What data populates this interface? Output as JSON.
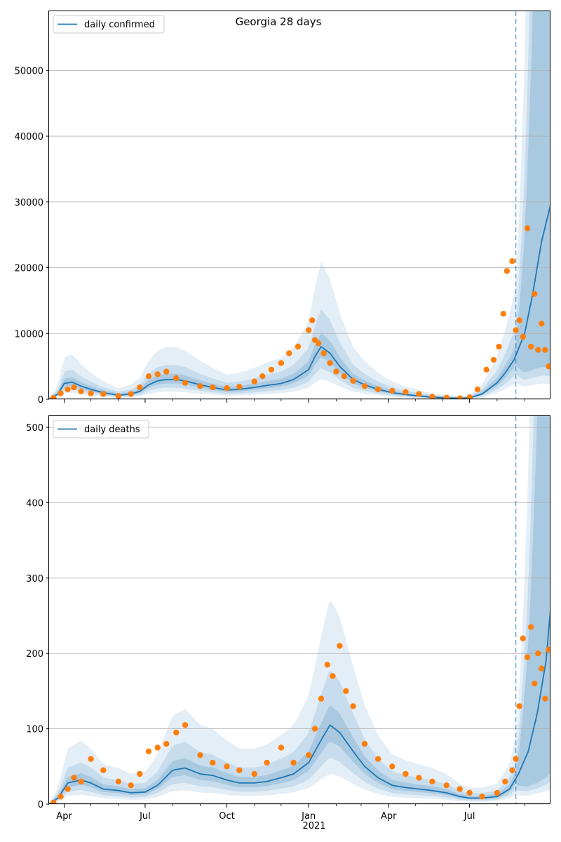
{
  "title": "Georgia 28 days",
  "colors": {
    "line": "#1f77b4",
    "points": "#ff7f0e",
    "band": "#1f77b4",
    "grid": "#b0b0b0",
    "vline": "#1f77b4"
  },
  "chart_data": [
    {
      "type": "line",
      "name": "daily confirmed",
      "legend": "upper-left",
      "grid": "horizontal",
      "xlim": [
        "2020-03-15",
        "2021-09-30"
      ],
      "ylim": [
        0,
        59000
      ],
      "yticks": [
        0,
        10000,
        20000,
        30000,
        40000,
        50000
      ],
      "ytick_labels": [
        "0",
        "10000",
        "20000",
        "30000",
        "40000",
        "50000"
      ],
      "forecast_start": "2021-08-22",
      "series": [
        {
          "name": "daily confirmed",
          "x": [
            "2020-03-15",
            "2020-03-25",
            "2020-04-01",
            "2020-04-10",
            "2020-04-20",
            "2020-05-01",
            "2020-05-15",
            "2020-06-01",
            "2020-06-15",
            "2020-06-25",
            "2020-07-05",
            "2020-07-15",
            "2020-07-25",
            "2020-08-05",
            "2020-08-15",
            "2020-09-01",
            "2020-09-15",
            "2020-10-01",
            "2020-10-15",
            "2020-11-01",
            "2020-11-15",
            "2020-12-01",
            "2020-12-15",
            "2021-01-01",
            "2021-01-08",
            "2021-01-15",
            "2021-01-25",
            "2021-02-05",
            "2021-02-20",
            "2021-03-05",
            "2021-03-20",
            "2021-04-05",
            "2021-04-20",
            "2021-05-05",
            "2021-05-20",
            "2021-06-05",
            "2021-06-20",
            "2021-07-01",
            "2021-07-15",
            "2021-08-01",
            "2021-08-10",
            "2021-08-20",
            "2021-09-01",
            "2021-09-10",
            "2021-09-20",
            "2021-09-30"
          ],
          "y": [
            0,
            800,
            2400,
            2600,
            2000,
            1500,
            1000,
            600,
            800,
            1200,
            2200,
            2800,
            3000,
            3000,
            2800,
            2200,
            1800,
            1400,
            1500,
            1800,
            2100,
            2400,
            3000,
            4500,
            6500,
            8000,
            7000,
            5000,
            3000,
            2200,
            1500,
            1000,
            700,
            500,
            300,
            200,
            150,
            200,
            800,
            2500,
            4000,
            6000,
            10000,
            16000,
            24000,
            29500
          ]
        }
      ],
      "observed": {
        "name": "observed points",
        "x": [
          "2020-03-20",
          "2020-03-28",
          "2020-04-05",
          "2020-04-12",
          "2020-04-20",
          "2020-05-01",
          "2020-05-15",
          "2020-06-01",
          "2020-06-15",
          "2020-06-25",
          "2020-07-05",
          "2020-07-15",
          "2020-07-25",
          "2020-08-05",
          "2020-08-15",
          "2020-09-01",
          "2020-09-15",
          "2020-10-01",
          "2020-10-15",
          "2020-11-01",
          "2020-11-10",
          "2020-11-20",
          "2020-12-01",
          "2020-12-10",
          "2020-12-20",
          "2021-01-01",
          "2021-01-05",
          "2021-01-08",
          "2021-01-12",
          "2021-01-18",
          "2021-01-25",
          "2021-02-01",
          "2021-02-10",
          "2021-02-20",
          "2021-03-05",
          "2021-03-20",
          "2021-04-05",
          "2021-04-20",
          "2021-05-05",
          "2021-05-20",
          "2021-06-05",
          "2021-06-20",
          "2021-07-01",
          "2021-07-10",
          "2021-07-20",
          "2021-07-28",
          "2021-08-03",
          "2021-08-08",
          "2021-08-12",
          "2021-08-18",
          "2021-08-22",
          "2021-08-26",
          "2021-08-30",
          "2021-09-04",
          "2021-09-08",
          "2021-09-12",
          "2021-09-16",
          "2021-09-20",
          "2021-09-24",
          "2021-09-28"
        ],
        "y": [
          200,
          900,
          1500,
          1800,
          1200,
          900,
          800,
          500,
          800,
          1800,
          3500,
          3800,
          4200,
          3200,
          2500,
          2000,
          1800,
          1700,
          1900,
          2700,
          3500,
          4500,
          5500,
          7000,
          8000,
          10500,
          12000,
          9000,
          8500,
          7000,
          5500,
          4200,
          3500,
          2800,
          2000,
          1500,
          1300,
          1100,
          800,
          400,
          250,
          150,
          300,
          1500,
          4500,
          6000,
          8000,
          13000,
          19500,
          21000,
          10500,
          12000,
          9500,
          26000,
          8000,
          16000,
          7500,
          11500,
          7500,
          5000
        ]
      }
    },
    {
      "type": "line",
      "name": "daily deaths",
      "legend": "upper-left",
      "grid": "horizontal",
      "xlim": [
        "2020-03-15",
        "2021-09-30"
      ],
      "ylim": [
        0,
        515
      ],
      "yticks": [
        0,
        100,
        200,
        300,
        400,
        500
      ],
      "ytick_labels": [
        "0",
        "100",
        "200",
        "300",
        "400",
        "500"
      ],
      "xtick_labels": [
        "Apr",
        "Jul",
        "Oct",
        "Jan",
        "Apr",
        "Jul"
      ],
      "xtick_dates": [
        "2020-04-01",
        "2020-07-01",
        "2020-10-01",
        "2021-01-01",
        "2021-04-01",
        "2021-07-01"
      ],
      "xtick_year_label": "2021",
      "forecast_start": "2021-08-22",
      "series": [
        {
          "name": "daily deaths",
          "x": [
            "2020-03-15",
            "2020-03-25",
            "2020-04-05",
            "2020-04-20",
            "2020-05-01",
            "2020-05-15",
            "2020-06-01",
            "2020-06-15",
            "2020-07-01",
            "2020-07-15",
            "2020-08-01",
            "2020-08-15",
            "2020-09-01",
            "2020-09-15",
            "2020-10-01",
            "2020-10-15",
            "2020-11-01",
            "2020-11-15",
            "2020-12-01",
            "2020-12-15",
            "2021-01-01",
            "2021-01-15",
            "2021-01-25",
            "2021-02-05",
            "2021-02-20",
            "2021-03-05",
            "2021-03-20",
            "2021-04-05",
            "2021-04-20",
            "2021-05-05",
            "2021-05-20",
            "2021-06-05",
            "2021-06-20",
            "2021-07-01",
            "2021-07-15",
            "2021-08-01",
            "2021-08-15",
            "2021-08-25",
            "2021-09-05",
            "2021-09-15",
            "2021-09-25",
            "2021-09-30"
          ],
          "y": [
            0,
            8,
            28,
            32,
            28,
            20,
            18,
            15,
            16,
            25,
            45,
            48,
            40,
            38,
            32,
            28,
            28,
            30,
            35,
            40,
            55,
            85,
            105,
            95,
            70,
            50,
            35,
            25,
            22,
            20,
            18,
            15,
            10,
            8,
            8,
            10,
            20,
            40,
            70,
            120,
            190,
            258
          ]
        }
      ],
      "observed": {
        "name": "observed points",
        "x": [
          "2020-03-20",
          "2020-03-28",
          "2020-04-05",
          "2020-04-12",
          "2020-04-20",
          "2020-05-01",
          "2020-05-15",
          "2020-06-01",
          "2020-06-15",
          "2020-06-25",
          "2020-07-05",
          "2020-07-15",
          "2020-07-25",
          "2020-08-05",
          "2020-08-15",
          "2020-09-01",
          "2020-09-15",
          "2020-10-01",
          "2020-10-15",
          "2020-11-01",
          "2020-11-15",
          "2020-12-01",
          "2020-12-15",
          "2021-01-01",
          "2021-01-08",
          "2021-01-15",
          "2021-01-22",
          "2021-01-28",
          "2021-02-05",
          "2021-02-12",
          "2021-02-20",
          "2021-03-05",
          "2021-03-20",
          "2021-04-05",
          "2021-04-20",
          "2021-05-05",
          "2021-05-20",
          "2021-06-05",
          "2021-06-20",
          "2021-07-01",
          "2021-07-15",
          "2021-08-01",
          "2021-08-10",
          "2021-08-18",
          "2021-08-22",
          "2021-08-26",
          "2021-08-30",
          "2021-09-04",
          "2021-09-08",
          "2021-09-12",
          "2021-09-16",
          "2021-09-20",
          "2021-09-24",
          "2021-09-28"
        ],
        "y": [
          2,
          10,
          20,
          35,
          30,
          60,
          45,
          30,
          25,
          40,
          70,
          75,
          80,
          95,
          105,
          65,
          55,
          50,
          45,
          40,
          55,
          75,
          55,
          65,
          100,
          140,
          185,
          170,
          210,
          150,
          130,
          80,
          60,
          50,
          40,
          35,
          30,
          25,
          20,
          15,
          10,
          15,
          30,
          45,
          60,
          130,
          220,
          195,
          235,
          160,
          200,
          180,
          140,
          205
        ]
      }
    }
  ]
}
